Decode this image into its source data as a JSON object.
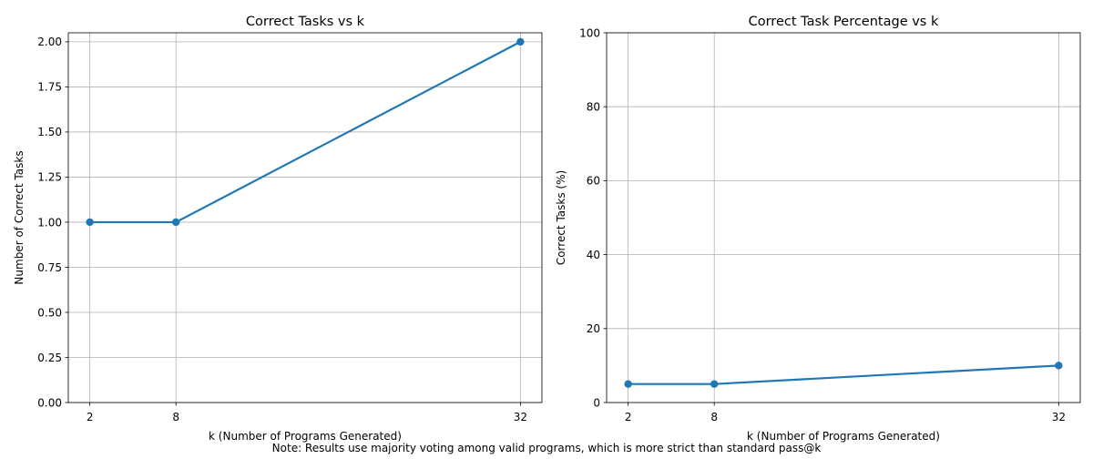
{
  "colors": {
    "series": "#1f77b4",
    "grid": "#b0b0b0"
  },
  "note": "Note: Results use majority voting among valid programs, which is more strict than standard pass@k",
  "chart_data": [
    {
      "type": "line",
      "title": "Correct Tasks vs k",
      "xlabel": "k (Number of Programs Generated)",
      "ylabel": "Number of Correct Tasks",
      "x": [
        2,
        8,
        32
      ],
      "xticks": [
        "2",
        "8",
        "32"
      ],
      "xlim": [
        0.5,
        33.5
      ],
      "ylim": [
        0,
        2.05
      ],
      "yticks": [
        "0.00",
        "0.25",
        "0.50",
        "0.75",
        "1.00",
        "1.25",
        "1.50",
        "1.75",
        "2.00"
      ],
      "grid": true,
      "series": [
        {
          "values": [
            1,
            1,
            2
          ]
        }
      ]
    },
    {
      "type": "line",
      "title": "Correct Task Percentage vs k",
      "xlabel": "k (Number of Programs Generated)",
      "ylabel": "Correct Tasks (%)",
      "x": [
        2,
        8,
        32
      ],
      "xticks": [
        "2",
        "8",
        "32"
      ],
      "xlim": [
        0.5,
        33.5
      ],
      "ylim": [
        0,
        100
      ],
      "yticks": [
        "0",
        "20",
        "40",
        "60",
        "80",
        "100"
      ],
      "grid": true,
      "series": [
        {
          "values": [
            5,
            5,
            10
          ]
        }
      ]
    }
  ]
}
